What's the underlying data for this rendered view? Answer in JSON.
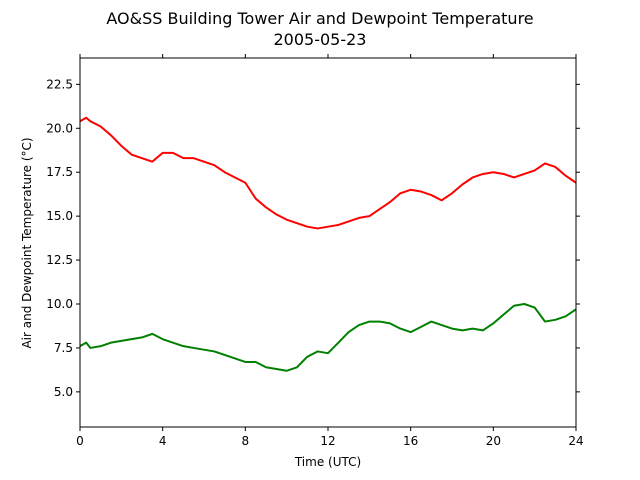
{
  "chart_data": {
    "type": "line",
    "title": "AO&SS Building Tower Air and Dewpoint Temperature",
    "subtitle": "2005-05-23",
    "xlabel": "Time (UTC)",
    "ylabel": "Air and Dewpoint Temperature (°C)",
    "xlim": [
      0,
      24
    ],
    "ylim": [
      3.0,
      24.0
    ],
    "x_ticks": [
      0,
      4,
      8,
      12,
      16,
      20,
      24
    ],
    "x_tick_labels": [
      "0",
      "4",
      "8",
      "12",
      "16",
      "20",
      "24"
    ],
    "y_ticks": [
      5.0,
      7.5,
      10.0,
      12.5,
      15.0,
      17.5,
      20.0,
      22.5
    ],
    "y_tick_labels": [
      "5.0",
      "7.5",
      "10.0",
      "12.5",
      "15.0",
      "17.5",
      "20.0",
      "22.5"
    ],
    "grid": false,
    "series": [
      {
        "color": "#ff0000",
        "x": [
          0,
          0.3,
          0.5,
          1.0,
          1.5,
          2.0,
          2.5,
          3.0,
          3.5,
          4.0,
          4.5,
          5.0,
          5.5,
          6.0,
          6.5,
          7.0,
          7.5,
          8.0,
          8.5,
          9.0,
          9.5,
          10.0,
          10.5,
          11.0,
          11.5,
          12.0,
          12.5,
          13.0,
          13.5,
          14.0,
          14.5,
          15.0,
          15.5,
          16.0,
          16.5,
          17.0,
          17.5,
          18.0,
          18.5,
          19.0,
          19.5,
          20.0,
          20.5,
          21.0,
          21.5,
          22.0,
          22.5,
          23.0,
          23.5,
          24.0
        ],
        "values": [
          20.4,
          20.6,
          20.4,
          20.1,
          19.6,
          19.0,
          18.5,
          18.3,
          18.1,
          18.6,
          18.6,
          18.3,
          18.3,
          18.1,
          17.9,
          17.5,
          17.2,
          16.9,
          16.0,
          15.5,
          15.1,
          14.8,
          14.6,
          14.4,
          14.3,
          14.4,
          14.5,
          14.7,
          14.9,
          15.0,
          15.4,
          15.8,
          16.3,
          16.5,
          16.4,
          16.2,
          15.9,
          16.3,
          16.8,
          17.2,
          17.4,
          17.5,
          17.4,
          17.2,
          17.4,
          17.6,
          18.0,
          17.8,
          17.3,
          16.9
        ]
      },
      {
        "color": "#008000",
        "x": [
          0,
          0.3,
          0.5,
          1.0,
          1.5,
          2.0,
          2.5,
          3.0,
          3.5,
          4.0,
          4.5,
          5.0,
          5.5,
          6.0,
          6.5,
          7.0,
          7.5,
          8.0,
          8.5,
          9.0,
          9.5,
          10.0,
          10.5,
          11.0,
          11.5,
          12.0,
          12.5,
          13.0,
          13.5,
          14.0,
          14.5,
          15.0,
          15.5,
          16.0,
          16.5,
          17.0,
          17.5,
          18.0,
          18.5,
          19.0,
          19.5,
          20.0,
          20.5,
          21.0,
          21.5,
          22.0,
          22.5,
          23.0,
          23.5,
          24.0
        ],
        "values": [
          7.6,
          7.8,
          7.5,
          7.6,
          7.8,
          7.9,
          8.0,
          8.1,
          8.3,
          8.0,
          7.8,
          7.6,
          7.5,
          7.4,
          7.3,
          7.1,
          6.9,
          6.7,
          6.7,
          6.4,
          6.3,
          6.2,
          6.4,
          7.0,
          7.3,
          7.2,
          7.8,
          8.4,
          8.8,
          9.0,
          9.0,
          8.9,
          8.6,
          8.4,
          8.7,
          9.0,
          8.8,
          8.6,
          8.5,
          8.6,
          8.5,
          8.9,
          9.4,
          9.9,
          10.0,
          9.8,
          9.0,
          9.1,
          9.3,
          9.7
        ]
      }
    ]
  }
}
